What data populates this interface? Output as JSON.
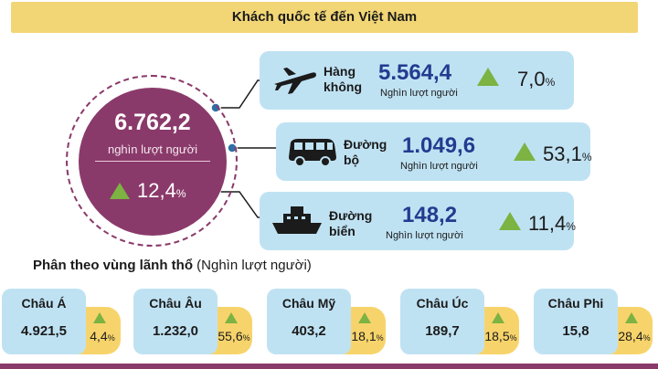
{
  "title": "Khách quốc tế đến Việt Nam",
  "total": {
    "value": "6.762,2",
    "unit": "nghìn lượt người",
    "growth": "12,4",
    "pct": "%"
  },
  "modes": [
    {
      "label_line1": "Hàng",
      "label_line2": "không",
      "value": "5.564,4",
      "unit": "Nghìn lượt người",
      "growth": "7,0",
      "pct": "%",
      "icon": "airplane-icon"
    },
    {
      "label_line1": "Đường",
      "label_line2": "bộ",
      "value": "1.049,6",
      "unit": "Nghìn lượt người",
      "growth": "53,1",
      "pct": "%",
      "icon": "bus-icon"
    },
    {
      "label_line1": "Đường",
      "label_line2": "biển",
      "value": "148,2",
      "unit": "Nghìn lượt người",
      "growth": "11,4",
      "pct": "%",
      "icon": "ship-icon"
    }
  ],
  "regions_title": {
    "main": "Phân theo vùng lãnh thổ",
    "unit": "(Nghìn lượt người)"
  },
  "regions": [
    {
      "name": "Châu Á",
      "value": "4.921,5",
      "growth": "4,4",
      "pct": "%"
    },
    {
      "name": "Châu Âu",
      "value": "1.232,0",
      "growth": "55,6",
      "pct": "%"
    },
    {
      "name": "Châu Mỹ",
      "value": "403,2",
      "growth": "18,1",
      "pct": "%"
    },
    {
      "name": "Châu Úc",
      "value": "189,7",
      "growth": "18,5",
      "pct": "%"
    },
    {
      "name": "Châu Phi",
      "value": "15,8",
      "growth": "28,4",
      "pct": "%"
    }
  ],
  "colors": {
    "accent": "#8a3a6a",
    "box": "#bfe2f3",
    "yellow": "#f7d46b",
    "up": "#7cb342",
    "value_blue": "#243b8f"
  },
  "chart_data": {
    "type": "table",
    "title": "Khách quốc tế đến Việt Nam",
    "unit": "nghìn lượt người",
    "total": {
      "value": 6762.2,
      "growth_pct": 12.4
    },
    "by_mode": [
      {
        "name": "Hàng không",
        "value": 5564.4,
        "growth_pct": 7.0
      },
      {
        "name": "Đường bộ",
        "value": 1049.6,
        "growth_pct": 53.1
      },
      {
        "name": "Đường biển",
        "value": 148.2,
        "growth_pct": 11.4
      }
    ],
    "by_region": [
      {
        "name": "Châu Á",
        "value": 4921.5,
        "growth_pct": 4.4
      },
      {
        "name": "Châu Âu",
        "value": 1232.0,
        "growth_pct": 55.6
      },
      {
        "name": "Châu Mỹ",
        "value": 403.2,
        "growth_pct": 18.1
      },
      {
        "name": "Châu Úc",
        "value": 189.7,
        "growth_pct": 18.5
      },
      {
        "name": "Châu Phi",
        "value": 15.8,
        "growth_pct": 28.4
      }
    ]
  }
}
